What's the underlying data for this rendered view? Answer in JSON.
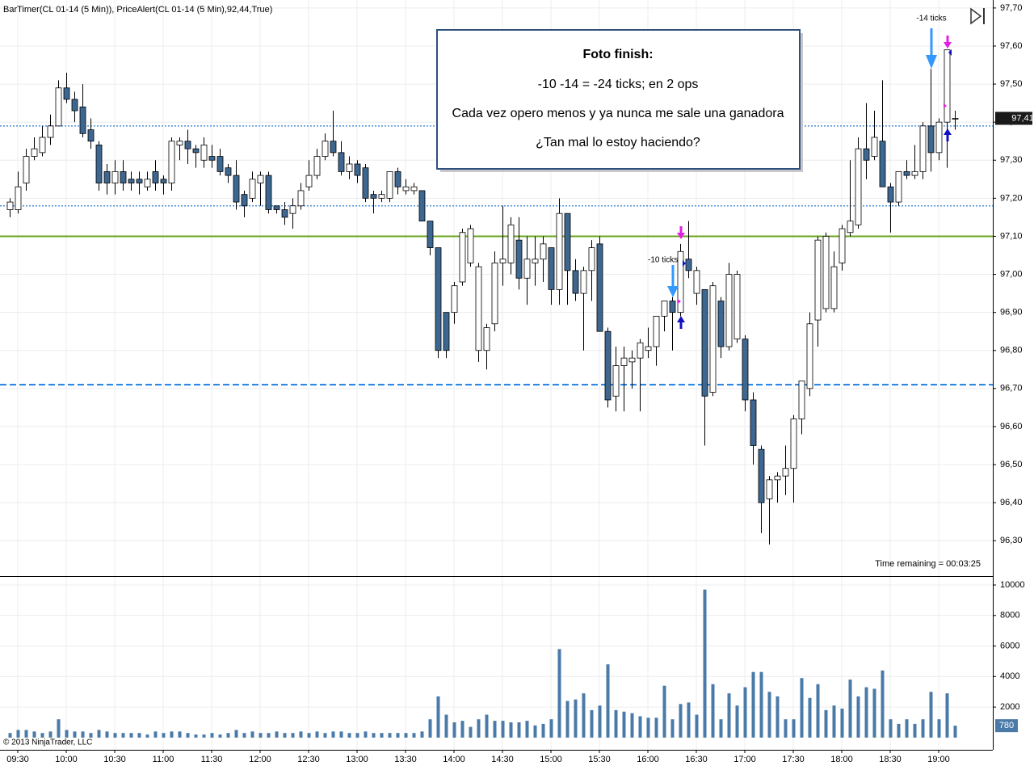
{
  "chart_data": [
    {
      "type": "candlestick",
      "title": "BarTimer(CL 01-14 (5 Min)), PriceAlert(CL 01-14 (5 Min),92,44,True)",
      "categories": [
        null,
        "09:30",
        null,
        null,
        null,
        null,
        null,
        "10:00",
        null,
        null,
        null,
        null,
        null,
        "10:30",
        null,
        null,
        null,
        null,
        null,
        "11:00",
        null,
        null,
        null,
        null,
        null,
        "11:30",
        null,
        null,
        null,
        null,
        null,
        "12:00",
        null,
        null,
        null,
        null,
        null,
        "12:30",
        null,
        null,
        null,
        null,
        null,
        "13:00",
        null,
        null,
        null,
        null,
        null,
        "13:30",
        null,
        null,
        null,
        null,
        null,
        "14:00",
        null,
        null,
        null,
        null,
        null,
        "14:30",
        null,
        null,
        null,
        null,
        null,
        "15:00",
        null,
        null,
        null,
        null,
        null,
        "15:30",
        null,
        null,
        null,
        null,
        null,
        "16:00",
        null,
        null,
        null,
        null,
        null,
        "16:30",
        null,
        null,
        null,
        null,
        null,
        "17:00",
        null,
        null,
        null,
        null,
        null,
        "17:30",
        null,
        null,
        null,
        null,
        null,
        "18:00",
        null,
        null,
        null,
        null,
        null,
        "18:30",
        null,
        null,
        null,
        null,
        null,
        "19:00",
        null,
        null
      ],
      "open": [
        97.17,
        97.17,
        97.24,
        97.31,
        97.32,
        97.36,
        97.39,
        97.49,
        97.46,
        97.44,
        97.38,
        97.34,
        97.27,
        97.24,
        97.27,
        97.25,
        97.25,
        97.23,
        97.27,
        97.25,
        97.24,
        97.34,
        97.35,
        97.33,
        97.3,
        97.31,
        97.31,
        97.28,
        97.26,
        97.21,
        97.2,
        97.24,
        97.26,
        97.18,
        97.17,
        97.16,
        97.18,
        97.23,
        97.26,
        97.31,
        97.35,
        97.32,
        97.27,
        97.29,
        97.28,
        97.21,
        97.2,
        97.2,
        97.27,
        97.22,
        97.22,
        97.22,
        97.14,
        97.07,
        96.9,
        96.9,
        96.98,
        97.03,
        96.8,
        96.8,
        96.87,
        97.03,
        97.03,
        97.09,
        96.99,
        97.03,
        97.04,
        97.07,
        96.96,
        97.16,
        97.01,
        96.95,
        97.01,
        97.08,
        96.85,
        96.68,
        96.76,
        96.77,
        96.78,
        96.8,
        96.81,
        96.89,
        96.93,
        96.9,
        97.04,
        96.95,
        96.96,
        96.69,
        96.93,
        96.81,
        96.83,
        96.83,
        96.67,
        96.54,
        96.41,
        96.46,
        96.47,
        96.49,
        96.62,
        96.7,
        96.88,
        96.91,
        96.91,
        97.03,
        97.11,
        97.13,
        97.33,
        97.31,
        97.35,
        97.23,
        97.19,
        97.27,
        97.26,
        97.27,
        97.39,
        97.32,
        97.4,
        97.41
      ],
      "high": [
        97.2,
        97.27,
        97.33,
        97.36,
        97.39,
        97.42,
        97.51,
        97.53,
        97.48,
        97.5,
        97.41,
        97.35,
        97.29,
        97.3,
        97.3,
        97.27,
        97.27,
        97.27,
        97.3,
        97.26,
        97.36,
        97.36,
        97.38,
        97.34,
        97.36,
        97.34,
        97.33,
        97.29,
        97.3,
        97.22,
        97.27,
        97.27,
        97.27,
        97.18,
        97.19,
        97.2,
        97.24,
        97.3,
        97.33,
        97.37,
        97.43,
        97.35,
        97.31,
        97.3,
        97.29,
        97.22,
        97.22,
        97.27,
        97.28,
        97.25,
        97.24,
        97.22,
        97.14,
        97.07,
        96.9,
        96.98,
        97.12,
        97.13,
        97.03,
        96.87,
        97.06,
        97.18,
        97.15,
        97.15,
        97.1,
        97.1,
        97.1,
        97.07,
        97.2,
        97.16,
        97.04,
        97.02,
        97.09,
        97.1,
        96.86,
        96.81,
        96.81,
        96.8,
        96.83,
        96.86,
        96.89,
        96.93,
        96.94,
        97.08,
        97.14,
        97.02,
        96.96,
        96.98,
        96.94,
        97.03,
        97.01,
        96.84,
        96.69,
        96.55,
        96.47,
        96.48,
        96.55,
        96.63,
        96.72,
        96.9,
        97.1,
        97.11,
        97.06,
        97.13,
        97.3,
        97.36,
        97.45,
        97.43,
        97.51,
        97.24,
        97.27,
        97.3,
        97.34,
        97.4,
        97.54,
        97.41,
        97.59,
        97.43
      ],
      "low": [
        97.15,
        97.16,
        97.22,
        97.3,
        97.31,
        97.34,
        97.39,
        97.45,
        97.4,
        97.36,
        97.33,
        97.22,
        97.21,
        97.21,
        97.22,
        97.22,
        97.21,
        97.22,
        97.22,
        97.21,
        97.22,
        97.3,
        97.29,
        97.28,
        97.28,
        97.28,
        97.26,
        97.24,
        97.17,
        97.15,
        97.19,
        97.18,
        97.16,
        97.16,
        97.13,
        97.12,
        97.17,
        97.22,
        97.25,
        97.3,
        97.31,
        97.26,
        97.25,
        97.24,
        97.19,
        97.16,
        97.19,
        97.19,
        97.21,
        97.21,
        97.21,
        97.14,
        97.05,
        96.78,
        96.78,
        96.87,
        96.97,
        97.02,
        96.77,
        96.75,
        96.85,
        96.97,
        97.0,
        96.96,
        96.92,
        96.97,
        96.98,
        96.92,
        96.92,
        96.92,
        96.93,
        96.8,
        96.93,
        96.85,
        96.65,
        96.64,
        96.64,
        96.7,
        96.64,
        96.78,
        96.76,
        96.85,
        96.8,
        96.89,
        96.99,
        96.92,
        96.55,
        96.68,
        96.78,
        96.8,
        96.82,
        96.64,
        96.5,
        96.32,
        96.29,
        96.4,
        96.42,
        96.4,
        96.58,
        96.68,
        96.81,
        96.9,
        96.9,
        97.01,
        97.1,
        97.12,
        97.25,
        97.3,
        97.23,
        97.11,
        97.18,
        97.25,
        97.25,
        97.25,
        97.27,
        97.3,
        97.28,
        97.38
      ],
      "close": [
        97.19,
        97.23,
        97.31,
        97.33,
        97.36,
        97.39,
        97.49,
        97.46,
        97.43,
        97.37,
        97.35,
        97.24,
        97.24,
        97.27,
        97.24,
        97.24,
        97.24,
        97.25,
        97.24,
        97.24,
        97.35,
        97.35,
        97.33,
        97.32,
        97.34,
        97.3,
        97.27,
        97.26,
        97.19,
        97.18,
        97.25,
        97.26,
        97.17,
        97.17,
        97.15,
        97.18,
        97.22,
        97.26,
        97.31,
        97.35,
        97.32,
        97.27,
        97.29,
        97.26,
        97.2,
        97.2,
        97.21,
        97.27,
        97.23,
        97.23,
        97.23,
        97.14,
        97.07,
        96.8,
        96.8,
        96.97,
        97.11,
        97.12,
        97.02,
        96.86,
        97.03,
        97.04,
        97.13,
        96.99,
        97.04,
        97.04,
        97.08,
        96.96,
        97.16,
        97.01,
        96.95,
        97.01,
        97.07,
        96.85,
        96.67,
        96.76,
        96.78,
        96.78,
        96.82,
        96.81,
        96.89,
        96.93,
        96.9,
        97.06,
        97.01,
        97.01,
        96.68,
        96.97,
        96.81,
        97.0,
        97.0,
        96.67,
        96.55,
        96.4,
        96.46,
        96.47,
        96.49,
        96.62,
        96.72,
        96.87,
        97.09,
        97.1,
        97.02,
        97.12,
        97.14,
        97.33,
        97.3,
        97.36,
        97.23,
        97.19,
        97.27,
        97.26,
        97.27,
        97.39,
        97.32,
        97.4,
        97.59,
        97.41
      ],
      "up_color": "#ffffff",
      "down_color": "#3d6791",
      "ylim": [
        96.207,
        97.721
      ],
      "yticks": [
        {
          "value": 97.7,
          "label": "97,70"
        },
        {
          "value": 97.6,
          "label": "97,60"
        },
        {
          "value": 97.5,
          "label": "97,50"
        },
        {
          "value": 97.4,
          "label": "97,40"
        },
        {
          "value": 97.3,
          "label": "97,30"
        },
        {
          "value": 97.2,
          "label": "97,20"
        },
        {
          "value": 97.1,
          "label": "97,10"
        },
        {
          "value": 97.0,
          "label": "97,00"
        },
        {
          "value": 96.9,
          "label": "96,90"
        },
        {
          "value": 96.8,
          "label": "96,80"
        },
        {
          "value": 96.7,
          "label": "96,70"
        },
        {
          "value": 96.6,
          "label": "96,60"
        },
        {
          "value": 96.5,
          "label": "96,50"
        },
        {
          "value": 96.4,
          "label": "96,40"
        },
        {
          "value": 96.3,
          "label": "96,30"
        }
      ],
      "grid": true,
      "last_price": {
        "value": 97.41,
        "label": "97,41"
      },
      "levels": [
        {
          "value": 97.1,
          "color": "#6aa520",
          "style": "solid"
        },
        {
          "value": 96.71,
          "color": "#1e7fe0",
          "style": "dashed"
        },
        {
          "value": 97.39,
          "color": "#4a90d9",
          "style": "dotted"
        },
        {
          "value": 97.18,
          "color": "#4a90d9",
          "style": "dotted"
        }
      ],
      "annotation_box": {
        "title": "Foto finish:",
        "lines": [
          "-10  -14 = -24 ticks; en 2 ops",
          "Cada vez opero menos y ya nunca me sale una ganadora",
          "¿Tan mal lo estoy haciendo?"
        ]
      },
      "annotations": [
        "-10 ticks",
        "-14 ticks"
      ],
      "time_remaining": "Time remaining = 00:03:25",
      "copyright": "© 2013 NinjaTrader, LLC"
    },
    {
      "type": "bar",
      "values": [
        300,
        500,
        500,
        400,
        300,
        400,
        1200,
        500,
        400,
        400,
        300,
        500,
        400,
        300,
        300,
        300,
        300,
        200,
        400,
        300,
        400,
        400,
        300,
        200,
        200,
        300,
        200,
        300,
        500,
        300,
        400,
        300,
        300,
        400,
        300,
        300,
        400,
        300,
        400,
        300,
        400,
        400,
        300,
        300,
        400,
        300,
        300,
        300,
        300,
        300,
        300,
        400,
        1200,
        2700,
        1500,
        1000,
        1100,
        700,
        1200,
        1500,
        1100,
        1100,
        1000,
        1000,
        1100,
        800,
        900,
        1200,
        5800,
        2400,
        2500,
        2900,
        1800,
        2100,
        4800,
        1800,
        1700,
        1600,
        1400,
        1300,
        1300,
        3400,
        1200,
        2200,
        2300,
        1500,
        9700,
        3500,
        1200,
        2900,
        2100,
        3300,
        4300,
        4300,
        3000,
        2700,
        1200,
        1200,
        3900,
        2600,
        3500,
        1800,
        2100,
        1900,
        3800,
        2700,
        3300,
        3200,
        4400,
        1200,
        900,
        1200,
        900,
        1200,
        3000,
        1200,
        2900,
        780
      ],
      "color": "#4a7aa8",
      "ylim": [
        -800,
        10530
      ],
      "yticks": [
        2000,
        4000,
        6000,
        8000,
        10000
      ],
      "grid": true
    }
  ]
}
